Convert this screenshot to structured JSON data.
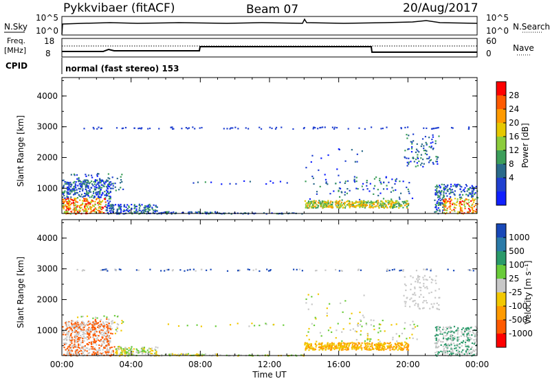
{
  "header": {
    "station": "Pykkvibaer (fitACF)",
    "beam": "Beam 07",
    "date": "20/Aug/2017"
  },
  "top_panels": {
    "nsky_label": "N.Sky",
    "nsky_ticks": [
      "10^5",
      "10^0"
    ],
    "nsearch_label": "N.Search",
    "nsearch_ticks": [
      "10^5",
      "10^0"
    ],
    "freq_label_1": "Freq.",
    "freq_label_2": "[MHz]",
    "freq_ticks": [
      "18",
      "8"
    ],
    "nave_label": "Nave",
    "nave_ticks": [
      "60",
      "0"
    ],
    "cpid_label": "CPID",
    "cpid_value": "normal (fast stereo) 153"
  },
  "chart_data": [
    {
      "type": "heatmap",
      "name": "power",
      "ylabel": "Slant Range [km]",
      "xlabel": "Time UT",
      "xlim_hours": [
        0,
        24
      ],
      "ylim_km": [
        180,
        4600
      ],
      "y_ticks": [
        "4000",
        "3000",
        "2000",
        "1000"
      ],
      "x_ticks": [
        "00:00",
        "04:00",
        "08:00",
        "12:00",
        "16:00",
        "20:00",
        "00:00"
      ],
      "colorbar_label": "Power [dB]",
      "colorbar_ticks": [
        "28",
        "24",
        "20",
        "16",
        "12",
        "8",
        "4"
      ],
      "colorbar_colors": [
        "#ff0000",
        "#ff5a00",
        "#ff9a00",
        "#e6c800",
        "#8ccc3c",
        "#3c9e5a",
        "#2a6a8a",
        "#2040d0",
        "#1020ff"
      ]
    },
    {
      "type": "heatmap",
      "name": "velocity",
      "ylabel": "Slant Range [km]",
      "xlabel": "Time UT",
      "xlim_hours": [
        0,
        24
      ],
      "ylim_km": [
        180,
        4600
      ],
      "y_ticks": [
        "4000",
        "3000",
        "2000",
        "1000"
      ],
      "x_ticks": [
        "00:00",
        "04:00",
        "08:00",
        "12:00",
        "16:00",
        "20:00",
        "00:00"
      ],
      "colorbar_label": "Velocity [m s⁻¹]",
      "colorbar_ticks": [
        "1000",
        "500",
        "100",
        "25",
        "-25",
        "-100",
        "-500",
        "-1000"
      ],
      "colorbar_colors": [
        "#1848b8",
        "#2a7aa8",
        "#2a9a6a",
        "#6acc3a",
        "#c8c8c8",
        "#f2c800",
        "#ff9a00",
        "#ff5a00",
        "#ff0000"
      ]
    }
  ]
}
